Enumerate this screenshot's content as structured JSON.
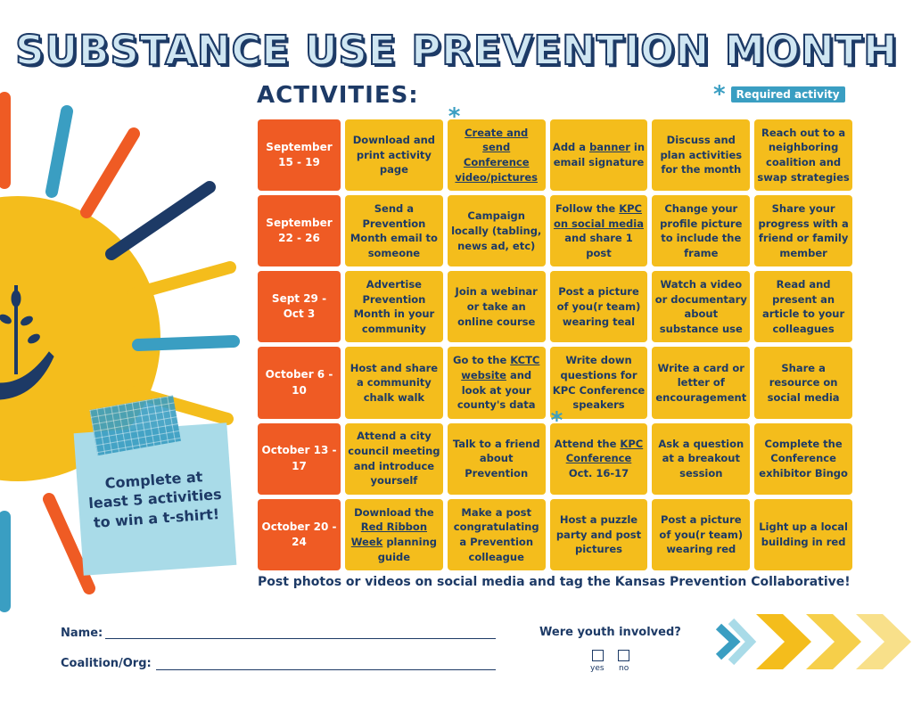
{
  "title": "SUBSTANCE USE PREVENTION MONTH",
  "activities_heading": "ACTIVITIES:",
  "legend": {
    "star": "*",
    "label": "Required activity"
  },
  "rows": [
    {
      "week": "September 15 - 19",
      "cells": [
        {
          "text": "Download and print activity page"
        },
        {
          "text": "Create and send Conference video/pictures",
          "required": true,
          "link": true
        },
        {
          "pre": "Add a ",
          "link": "banner",
          "post": " in email signature"
        },
        {
          "text": "Discuss and plan activities for the month"
        },
        {
          "text": "Reach out to a neighboring coalition and swap strategies"
        }
      ]
    },
    {
      "week": "September 22 - 26",
      "cells": [
        {
          "text": "Send a Prevention Month email to someone"
        },
        {
          "text": "Campaign locally (tabling, news ad, etc)"
        },
        {
          "pre": "Follow the ",
          "link": "KPC on social media",
          "post": " and share 1 post"
        },
        {
          "text": "Change your profile picture to include the frame"
        },
        {
          "text": "Share your progress with a friend or family member"
        }
      ]
    },
    {
      "week": "Sept 29 - Oct 3",
      "cells": [
        {
          "text": "Advertise Prevention Month in your community"
        },
        {
          "text": "Join a webinar or take an online course"
        },
        {
          "text": "Post a picture of you(r team) wearing teal"
        },
        {
          "text": "Watch a video or documentary about substance use"
        },
        {
          "text": "Read and present an article to your colleagues"
        }
      ]
    },
    {
      "week": "October 6 - 10",
      "cells": [
        {
          "text": "Host and share a community chalk walk"
        },
        {
          "pre": "Go to the ",
          "link": "KCTC website",
          "post": " and look at your county's data"
        },
        {
          "text": "Write down questions for KPC Conference speakers"
        },
        {
          "text": "Write a card or letter of encouragement"
        },
        {
          "text": "Share a resource on social media"
        }
      ]
    },
    {
      "week": "October 13 - 17",
      "cells": [
        {
          "text": "Attend a city council meeting and introduce yourself"
        },
        {
          "text": "Talk to a friend about Prevention"
        },
        {
          "pre": "Attend the ",
          "link": "KPC Conference",
          "post": " Oct. 16-17",
          "required": true
        },
        {
          "text": "Ask a question at a breakout session"
        },
        {
          "text": "Complete the Conference exhibitor Bingo"
        }
      ]
    },
    {
      "week": "October 20 - 24",
      "cells": [
        {
          "pre": "Download the ",
          "link": "Red Ribbon Week",
          "post": " planning guide"
        },
        {
          "text": "Make a post congratulating a Prevention colleague"
        },
        {
          "text": "Host a puzzle party and post pictures"
        },
        {
          "text": "Post a picture of you(r team) wearing red"
        },
        {
          "text": "Light up a local building in red"
        }
      ]
    }
  ],
  "footer_note": "Post photos or videos on social media and tag the Kansas Prevention Collaborative!",
  "sticky_note": "Complete at least 5 activities to win a t-shirt!",
  "form": {
    "name_label": "Name:",
    "org_label": "Coalition/Org:",
    "youth_question": "Were youth involved?",
    "yes": "yes",
    "no": "no"
  },
  "colors": {
    "navy": "#1d3a66",
    "orange": "#ef5b24",
    "gold": "#f4bd1c",
    "teal": "#3a9ec2"
  }
}
